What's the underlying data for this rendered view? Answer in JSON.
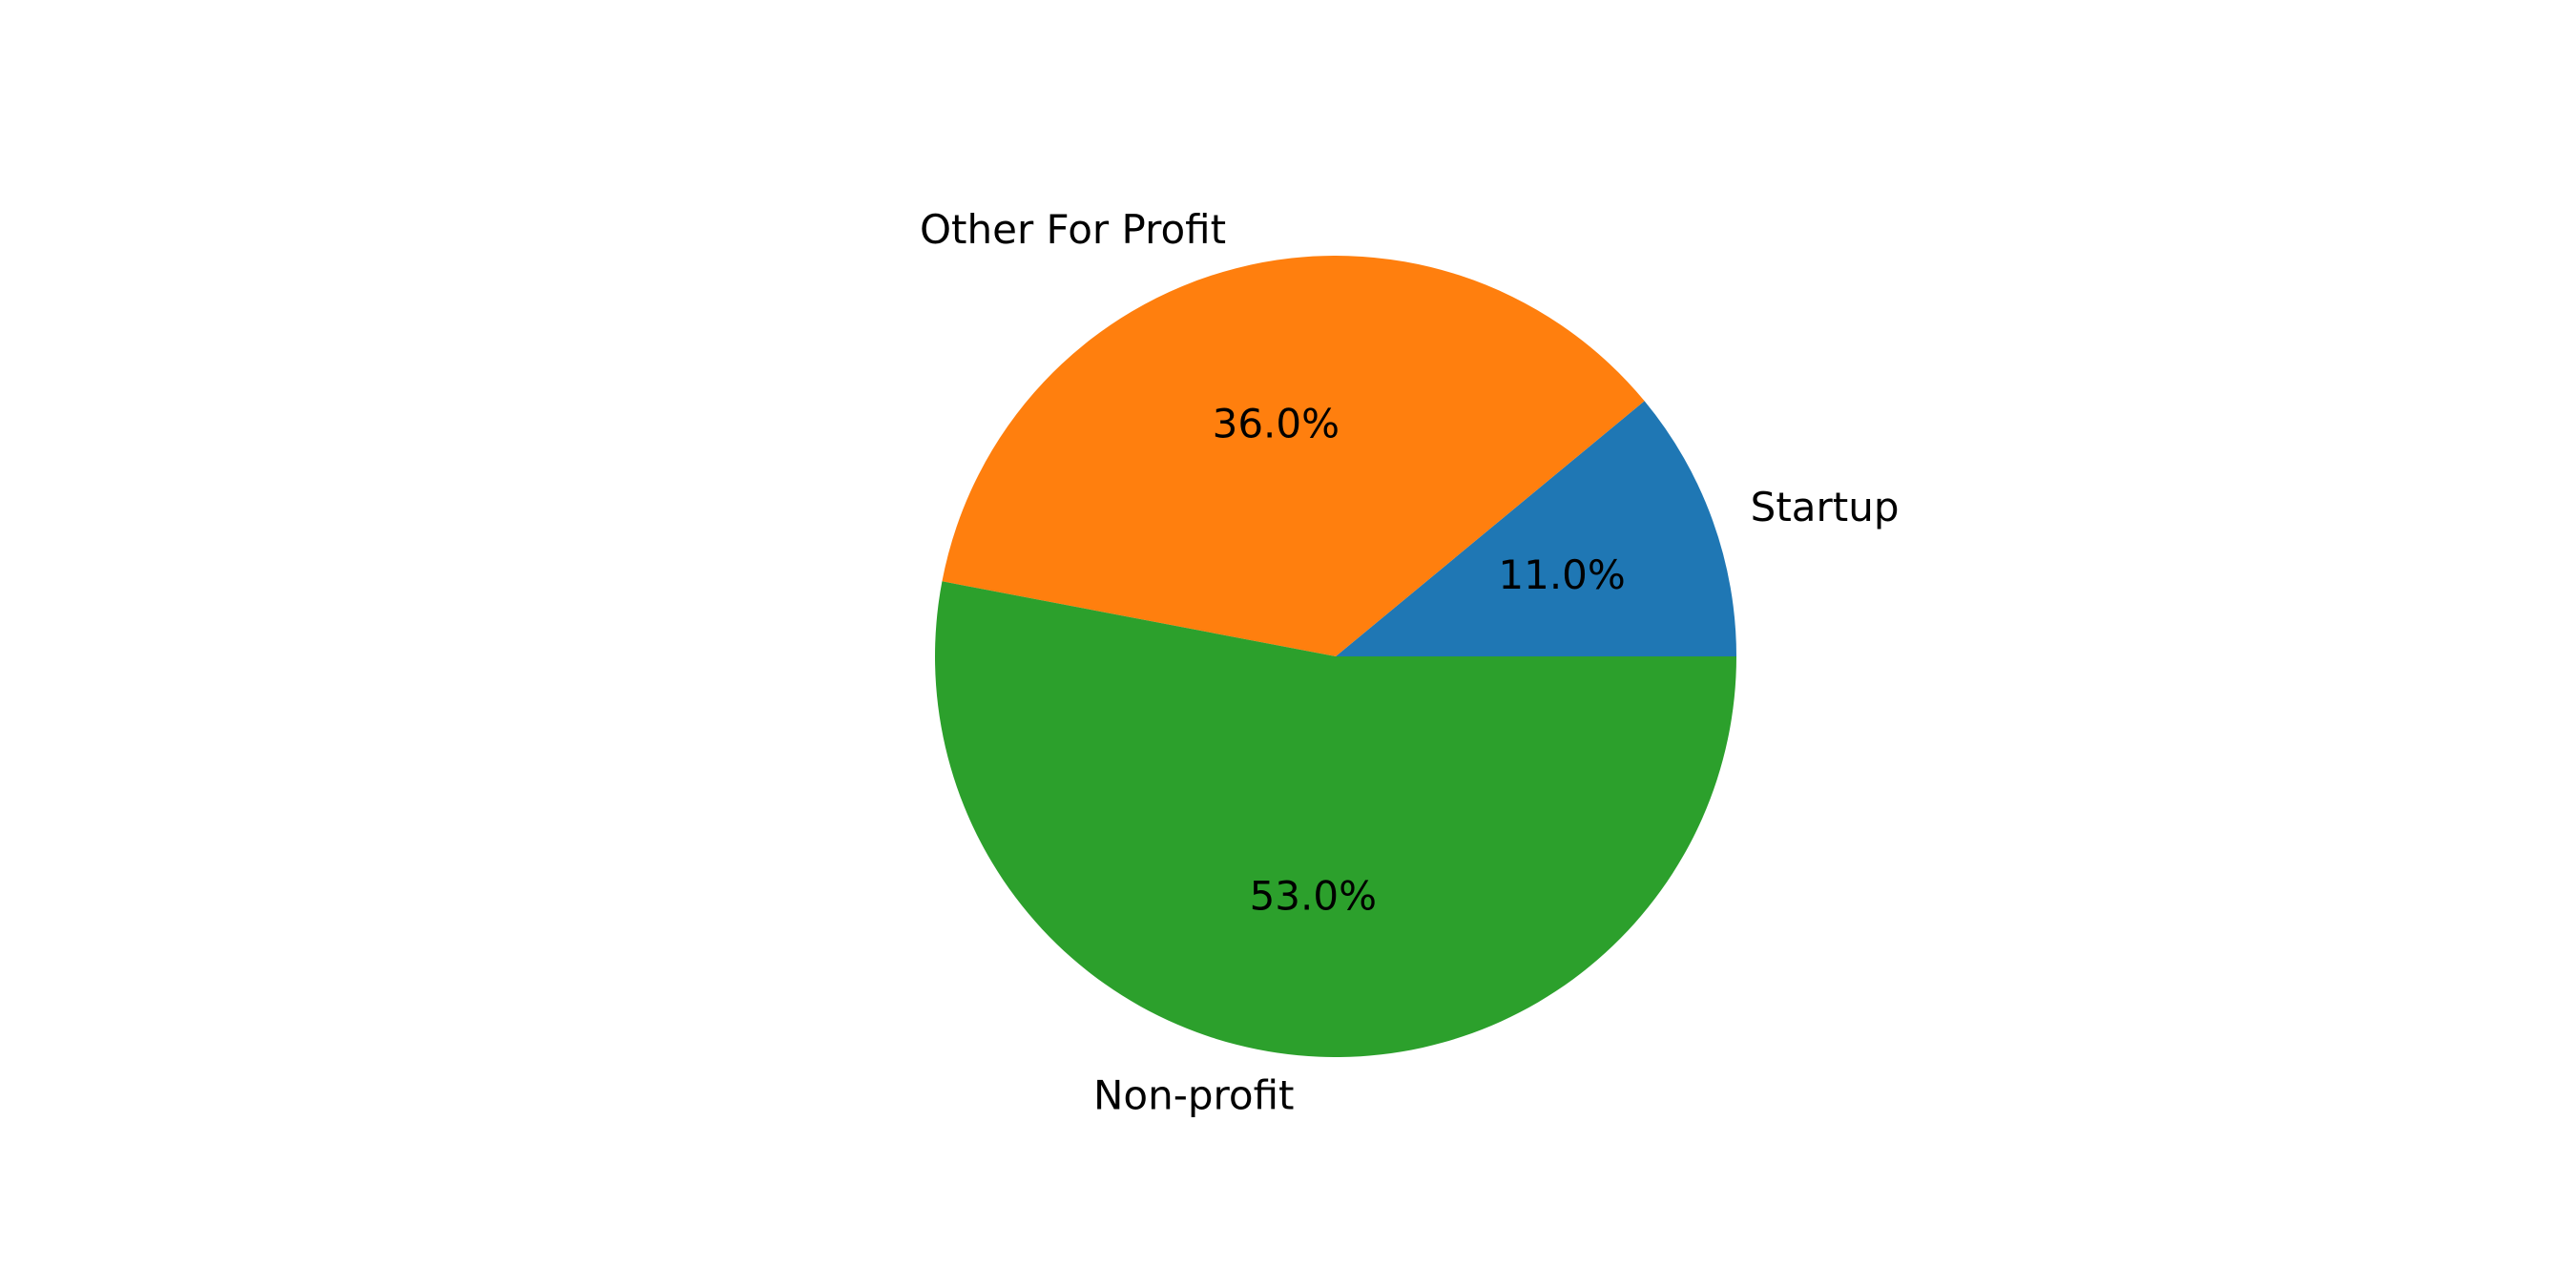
{
  "chart_data": {
    "type": "pie",
    "title": "",
    "labels": [
      "Startup",
      "Other For Profit",
      "Non-profit"
    ],
    "values": [
      11.0,
      36.0,
      53.0
    ],
    "percent_labels": [
      "11.0%",
      "36.0%",
      "53.0%"
    ],
    "colors": [
      "#1f77b4",
      "#ff7f0e",
      "#2ca02c"
    ],
    "start_angle_deg": 0,
    "direction": "counterclockwise",
    "legend": "none"
  }
}
